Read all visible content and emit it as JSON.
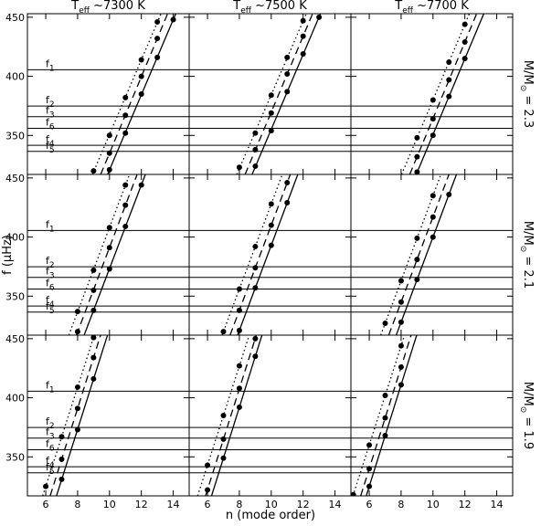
{
  "chart_data": {
    "type": "scatter",
    "xlabel": "n (mode order)",
    "ylabel": "f (μHz)",
    "xlim": [
      4.85,
      15
    ],
    "ylim": [
      317,
      453
    ],
    "xticks": [
      6,
      8,
      10,
      12,
      14
    ],
    "yticks": [
      350,
      400,
      450
    ],
    "column_titles": [
      {
        "symbol": "T",
        "sub": "eff",
        "text": " ~7300 K"
      },
      {
        "symbol": "T",
        "sub": "eff",
        "text": " ~7500 K"
      },
      {
        "symbol": "T",
        "sub": "eff",
        "text": " ~7700 K"
      }
    ],
    "row_labels": [
      {
        "symbol": "M/M",
        "sub": "⊙",
        "text": " = 2.3"
      },
      {
        "symbol": "M/M",
        "sub": "⊙",
        "text": " = 2.1"
      },
      {
        "symbol": "M/M",
        "sub": "⊙",
        "text": " = 1.9"
      }
    ],
    "frequencies": [
      {
        "symbol": "f",
        "sub": "1",
        "value": 405.6
      },
      {
        "symbol": "f",
        "sub": "2",
        "value": 374.9
      },
      {
        "symbol": "f",
        "sub": "3",
        "value": 365.9
      },
      {
        "symbol": "f",
        "sub": "6",
        "value": 356.0
      },
      {
        "symbol": "f",
        "sub": "4",
        "value": 341.6
      },
      {
        "symbol": "f",
        "sub": "5",
        "value": 336.5
      }
    ],
    "panels": [
      {
        "series": [
          {
            "style": "dotted",
            "x": [
              9,
              10,
              11,
              12,
              13
            ],
            "values": [
              320,
              350,
              382,
              414,
              446
            ]
          },
          {
            "style": "dashed",
            "x": [
              10,
              11,
              12,
              13
            ],
            "values": [
              335,
              367,
              400,
              432
            ]
          },
          {
            "style": "solid",
            "x": [
              10,
              11,
              12,
              13,
              14
            ],
            "values": [
              321,
              352,
              385,
              416,
              448
            ]
          }
        ]
      },
      {
        "series": [
          {
            "style": "dotted",
            "x": [
              8,
              9,
              10,
              11,
              12
            ],
            "values": [
              323,
              352,
              384,
              416,
              447
            ]
          },
          {
            "style": "dashed",
            "x": [
              9,
              10,
              11,
              12
            ],
            "values": [
              338,
              369,
              402,
              434
            ]
          },
          {
            "style": "solid",
            "x": [
              9,
              10,
              11,
              12,
              13
            ],
            "values": [
              324,
              354,
              387,
              419,
              450
            ]
          }
        ]
      },
      {
        "series": [
          {
            "style": "dotted",
            "x": [
              9,
              10,
              11,
              12
            ],
            "values": [
              348,
              380,
              412,
              444
            ]
          },
          {
            "style": "dashed",
            "x": [
              9,
              10,
              11,
              12
            ],
            "values": [
              332,
              364,
              397,
              429
            ]
          },
          {
            "style": "solid",
            "x": [
              9,
              10,
              11,
              12
            ],
            "values": [
              319,
              350,
              383,
              415
            ]
          }
        ]
      },
      {
        "series": [
          {
            "style": "dotted",
            "x": [
              8,
              9,
              10,
              11
            ],
            "values": [
              337,
              372,
              408,
              444
            ]
          },
          {
            "style": "dashed",
            "x": [
              8,
              9,
              10,
              11
            ],
            "values": [
              320,
              355,
              391,
              427
            ]
          },
          {
            "style": "solid",
            "x": [
              9,
              10,
              11,
              12
            ],
            "values": [
              338,
              373,
              409,
              444
            ]
          }
        ]
      },
      {
        "series": [
          {
            "style": "dotted",
            "x": [
              7,
              8,
              9,
              10
            ],
            "values": [
              320,
              356,
              392,
              428
            ]
          },
          {
            "style": "dashed",
            "x": [
              8,
              9,
              10,
              11
            ],
            "values": [
              338,
              374,
              410,
              446
            ]
          },
          {
            "style": "solid",
            "x": [
              8,
              9,
              10,
              11
            ],
            "values": [
              321,
              357,
              393,
              429
            ]
          }
        ]
      },
      {
        "series": [
          {
            "style": "dotted",
            "x": [
              7,
              8,
              9,
              10
            ],
            "values": [
              327,
              363,
              399,
              435
            ]
          },
          {
            "style": "dashed",
            "x": [
              8,
              9,
              10
            ],
            "values": [
              345,
              381,
              417
            ]
          },
          {
            "style": "solid",
            "x": [
              8,
              9,
              10,
              11
            ],
            "values": [
              328,
              364,
              400,
              436
            ]
          }
        ]
      },
      {
        "series": [
          {
            "style": "dotted",
            "x": [
              6,
              7,
              8,
              9
            ],
            "values": [
              325,
              367,
              409,
              451
            ]
          },
          {
            "style": "dashed",
            "x": [
              7,
              8,
              9
            ],
            "values": [
              348,
              391,
              434
            ]
          },
          {
            "style": "solid",
            "x": [
              7,
              8,
              9
            ],
            "values": [
              331,
              373,
              416
            ]
          }
        ]
      },
      {
        "series": [
          {
            "style": "dotted",
            "x": [
              6,
              7,
              8
            ],
            "values": [
              343,
              385,
              427
            ]
          },
          {
            "style": "dashed",
            "x": [
              6,
              7,
              8,
              9
            ],
            "values": [
              322,
              365,
              408,
              450
            ]
          },
          {
            "style": "solid",
            "x": [
              7,
              8,
              9
            ],
            "values": [
              349,
              392,
              435
            ]
          }
        ]
      },
      {
        "series": [
          {
            "style": "dotted",
            "x": [
              5,
              6,
              7,
              8
            ],
            "values": [
              318,
              360,
              402,
              444
            ]
          },
          {
            "style": "dashed",
            "x": [
              6,
              7,
              8
            ],
            "values": [
              340,
              383,
              426
            ]
          },
          {
            "style": "solid",
            "x": [
              6,
              7,
              8
            ],
            "values": [
              325,
              368,
              411
            ]
          }
        ]
      }
    ]
  }
}
